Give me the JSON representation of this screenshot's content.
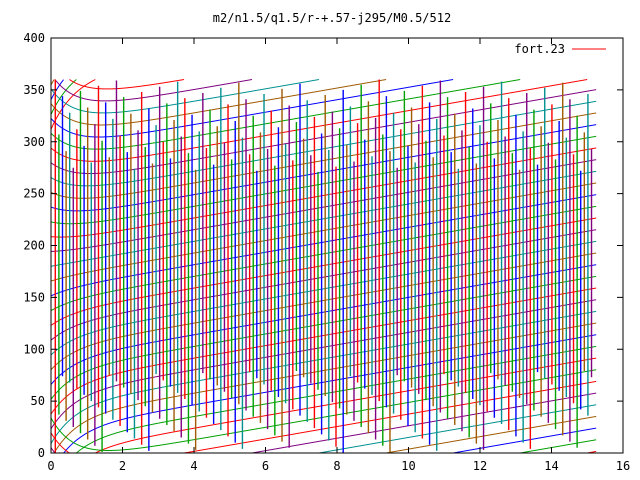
{
  "chart_data": {
    "type": "line",
    "title": "m2/n1.5/q1.5/r-+.57-j295/M0.5/512",
    "xlabel": "",
    "ylabel": "",
    "xlim": [
      0,
      16
    ],
    "ylim": [
      0,
      400
    ],
    "x_ticks": [
      "0",
      "2",
      "4",
      "6",
      "8",
      "10",
      "12",
      "14",
      "16"
    ],
    "y_ticks": [
      "0",
      "50",
      "100",
      "150",
      "200",
      "250",
      "300",
      "350",
      "400"
    ],
    "grid": false,
    "legend_position": "top-right",
    "series": [
      {
        "name": "fort.23",
        "color": "#ff0000",
        "x_range": [
          0,
          15.25
        ],
        "wrap_range": [
          0,
          360
        ]
      }
    ],
    "trace_colors": [
      "#ff0000",
      "#00a000",
      "#0000ff",
      "#a05a00",
      "#009090",
      "#800080"
    ]
  }
}
